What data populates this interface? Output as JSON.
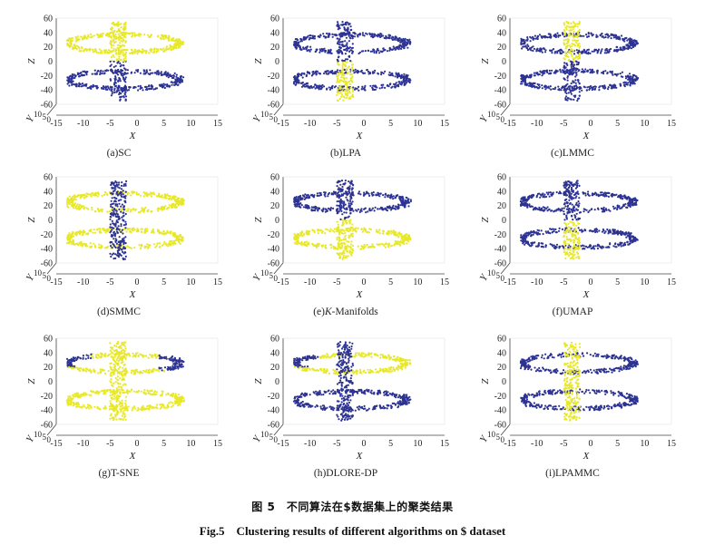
{
  "colors": {
    "cluster_a": "#e8e82a",
    "cluster_b": "#2d3393"
  },
  "figure": {
    "caption_cn": "图 5　不同算法在$数据集上的聚类结果",
    "caption_en": "Fig.5　Clustering results of different algorithms on $ dataset"
  },
  "chart_data": [
    {
      "type": "scatter",
      "title": "(a)SC",
      "xlabel": "X",
      "ylabel": "Y",
      "zlabel": "Z",
      "x_ticks": [
        "-15",
        "-10",
        "-5",
        "0",
        "5",
        "10",
        "15"
      ],
      "z_ticks": [
        "60",
        "40",
        "20",
        "0",
        "-20",
        "-40",
        "-60"
      ],
      "y_ticks": [
        "10",
        "5",
        "0"
      ],
      "xlim": [
        -15,
        15
      ],
      "zlim": [
        -60,
        60
      ],
      "colors": {
        "upper": "cluster_a",
        "lower": "cluster_b",
        "bar_top": "cluster_a",
        "bar_bottom": "cluster_b"
      }
    },
    {
      "type": "scatter",
      "title": "(b)LPA",
      "xlabel": "X",
      "ylabel": "Y",
      "zlabel": "Z",
      "x_ticks": [
        "-15",
        "-10",
        "-5",
        "0",
        "5",
        "10",
        "15"
      ],
      "z_ticks": [
        "60",
        "40",
        "20",
        "0",
        "-20",
        "-40",
        "-60"
      ],
      "y_ticks": [
        "10",
        "5",
        "0"
      ],
      "xlim": [
        -15,
        15
      ],
      "zlim": [
        -60,
        60
      ],
      "colors": {
        "upper": "cluster_b",
        "lower": "cluster_b",
        "bar_top": "cluster_b",
        "bar_bottom": "cluster_a"
      }
    },
    {
      "type": "scatter",
      "title": "(c)LMMC",
      "xlabel": "X",
      "ylabel": "Y",
      "zlabel": "Z",
      "x_ticks": [
        "-15",
        "-10",
        "-5",
        "0",
        "5",
        "10",
        "15"
      ],
      "z_ticks": [
        "60",
        "40",
        "20",
        "0",
        "-20",
        "-40",
        "-60"
      ],
      "y_ticks": [
        "10",
        "5",
        "0"
      ],
      "xlim": [
        -15,
        15
      ],
      "zlim": [
        -60,
        60
      ],
      "colors": {
        "upper": "cluster_b",
        "lower": "cluster_b",
        "bar_top": "cluster_a",
        "bar_bottom": "cluster_b"
      }
    },
    {
      "type": "scatter",
      "title": "(d)SMMC",
      "xlabel": "X",
      "ylabel": "Y",
      "zlabel": "Z",
      "x_ticks": [
        "-15",
        "-10",
        "-5",
        "0",
        "5",
        "10",
        "15"
      ],
      "z_ticks": [
        "60",
        "40",
        "20",
        "0",
        "-20",
        "-40",
        "-60"
      ],
      "y_ticks": [
        "10",
        "5",
        "0"
      ],
      "xlim": [
        -15,
        15
      ],
      "zlim": [
        -60,
        60
      ],
      "colors": {
        "upper": "cluster_a",
        "lower": "cluster_a",
        "bar_top": "cluster_b",
        "bar_bottom": "cluster_b"
      }
    },
    {
      "type": "scatter",
      "title_prefix": "(e)",
      "title_italic": "K",
      "title_suffix": "-Manifolds",
      "xlabel": "X",
      "ylabel": "Y",
      "zlabel": "Z",
      "x_ticks": [
        "-15",
        "-10",
        "-5",
        "0",
        "5",
        "10",
        "15"
      ],
      "z_ticks": [
        "60",
        "40",
        "20",
        "0",
        "-20",
        "-40",
        "-60"
      ],
      "y_ticks": [
        "10",
        "5",
        "0"
      ],
      "xlim": [
        -15,
        15
      ],
      "zlim": [
        -60,
        60
      ],
      "colors": {
        "upper": "cluster_b",
        "lower": "cluster_a",
        "bar_top": "cluster_b",
        "bar_bottom": "cluster_a"
      }
    },
    {
      "type": "scatter",
      "title": "(f)UMAP",
      "xlabel": "X",
      "ylabel": "Y",
      "zlabel": "Z",
      "x_ticks": [
        "-15",
        "-10",
        "-5",
        "0",
        "5",
        "10",
        "15"
      ],
      "z_ticks": [
        "60",
        "40",
        "20",
        "0",
        "-20",
        "-40",
        "-60"
      ],
      "y_ticks": [
        "10",
        "5",
        "0"
      ],
      "xlim": [
        -15,
        15
      ],
      "zlim": [
        -60,
        60
      ],
      "colors": {
        "upper": "cluster_b",
        "lower": "cluster_b",
        "bar_top": "cluster_b",
        "bar_bottom": "cluster_a"
      }
    },
    {
      "type": "scatter",
      "title": "(g)T-SNE",
      "xlabel": "X",
      "ylabel": "Y",
      "zlabel": "Z",
      "x_ticks": [
        "-15",
        "-10",
        "-5",
        "0",
        "5",
        "10",
        "15"
      ],
      "z_ticks": [
        "60",
        "40",
        "20",
        "0",
        "-20",
        "-40",
        "-60"
      ],
      "y_ticks": [
        "10",
        "5",
        "0"
      ],
      "xlim": [
        -15,
        15
      ],
      "zlim": [
        -60,
        60
      ],
      "colors": {
        "upper": "cluster_a",
        "lower": "cluster_a",
        "bar_top": "cluster_a",
        "bar_bottom": "cluster_a",
        "upper_left_tip": "cluster_b",
        "upper_right_tip": "cluster_b"
      }
    },
    {
      "type": "scatter",
      "title": "(h)DLORE-DP",
      "xlabel": "X",
      "ylabel": "Y",
      "zlabel": "Z",
      "x_ticks": [
        "-15",
        "-10",
        "-5",
        "0",
        "5",
        "10",
        "15"
      ],
      "z_ticks": [
        "60",
        "40",
        "20",
        "0",
        "-20",
        "-40",
        "-60"
      ],
      "y_ticks": [
        "10",
        "5",
        "0"
      ],
      "xlim": [
        -15,
        15
      ],
      "zlim": [
        -60,
        60
      ],
      "colors": {
        "upper": "cluster_a",
        "lower": "cluster_b",
        "bar_top": "cluster_b",
        "bar_bottom": "cluster_b",
        "upper_left_tip": "cluster_b"
      }
    },
    {
      "type": "scatter",
      "title": "(i)LPAMMC",
      "xlabel": "X",
      "ylabel": "Y",
      "zlabel": "Z",
      "x_ticks": [
        "-15",
        "-10",
        "-5",
        "0",
        "5",
        "10",
        "15"
      ],
      "z_ticks": [
        "60",
        "40",
        "20",
        "0",
        "-20",
        "-40",
        "-60"
      ],
      "y_ticks": [
        "10",
        "5",
        "0"
      ],
      "xlim": [
        -15,
        15
      ],
      "zlim": [
        -60,
        60
      ],
      "colors": {
        "upper": "cluster_b",
        "lower": "cluster_b",
        "bar_top": "cluster_a",
        "bar_bottom": "cluster_a"
      }
    }
  ]
}
